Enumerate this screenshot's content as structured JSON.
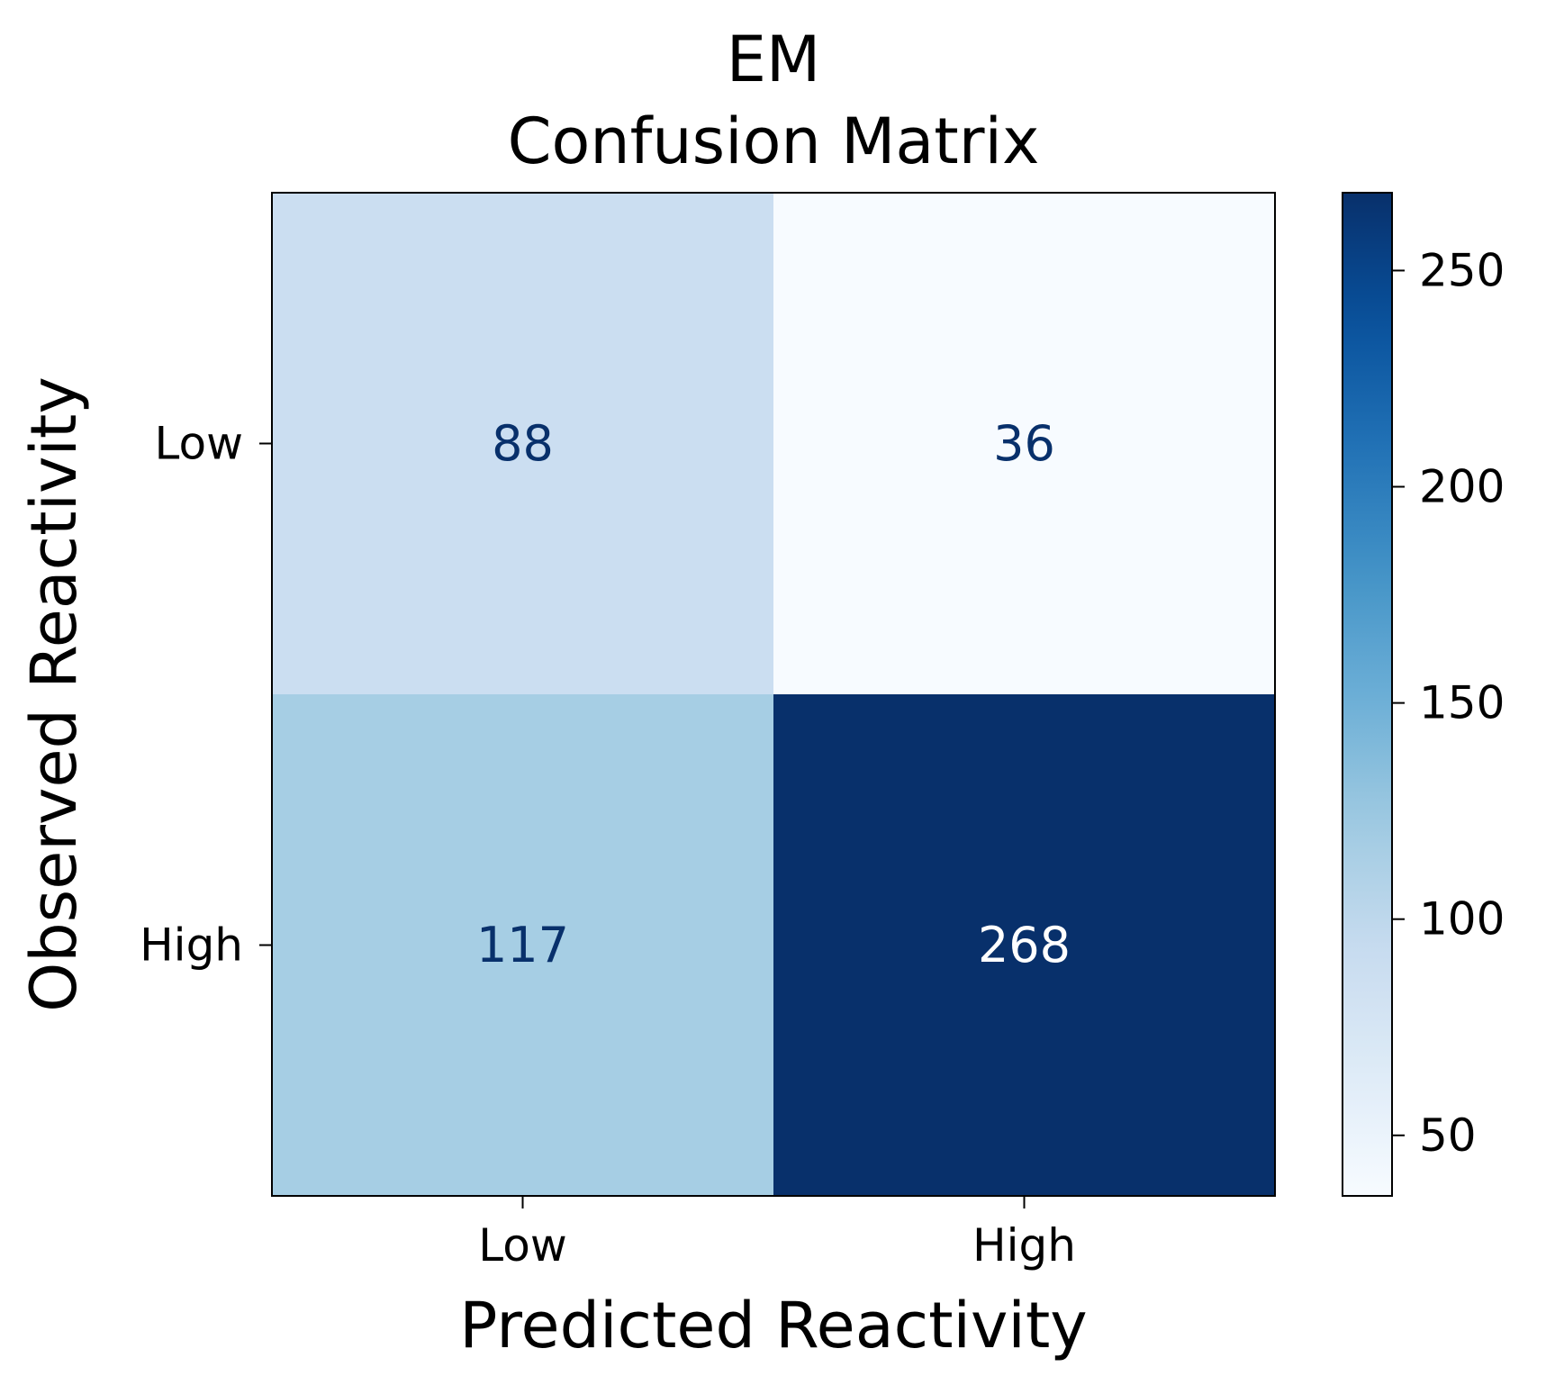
{
  "chart_data": {
    "type": "heatmap",
    "title_lines": [
      "EM",
      "Confusion Matrix"
    ],
    "xlabel": "Predicted Reactivity",
    "ylabel": "Observed Reactivity",
    "x_categories": [
      "Low",
      "High"
    ],
    "y_categories": [
      "Low",
      "High"
    ],
    "matrix": [
      [
        88,
        36
      ],
      [
        117,
        268
      ]
    ],
    "colormap": "Blues",
    "colorbar": {
      "vmin": 36,
      "vmax": 268,
      "ticks": [
        50,
        100,
        150,
        200,
        250
      ]
    },
    "colors": {
      "text_dark": "#08306b",
      "text_light": "#ffffff"
    }
  }
}
